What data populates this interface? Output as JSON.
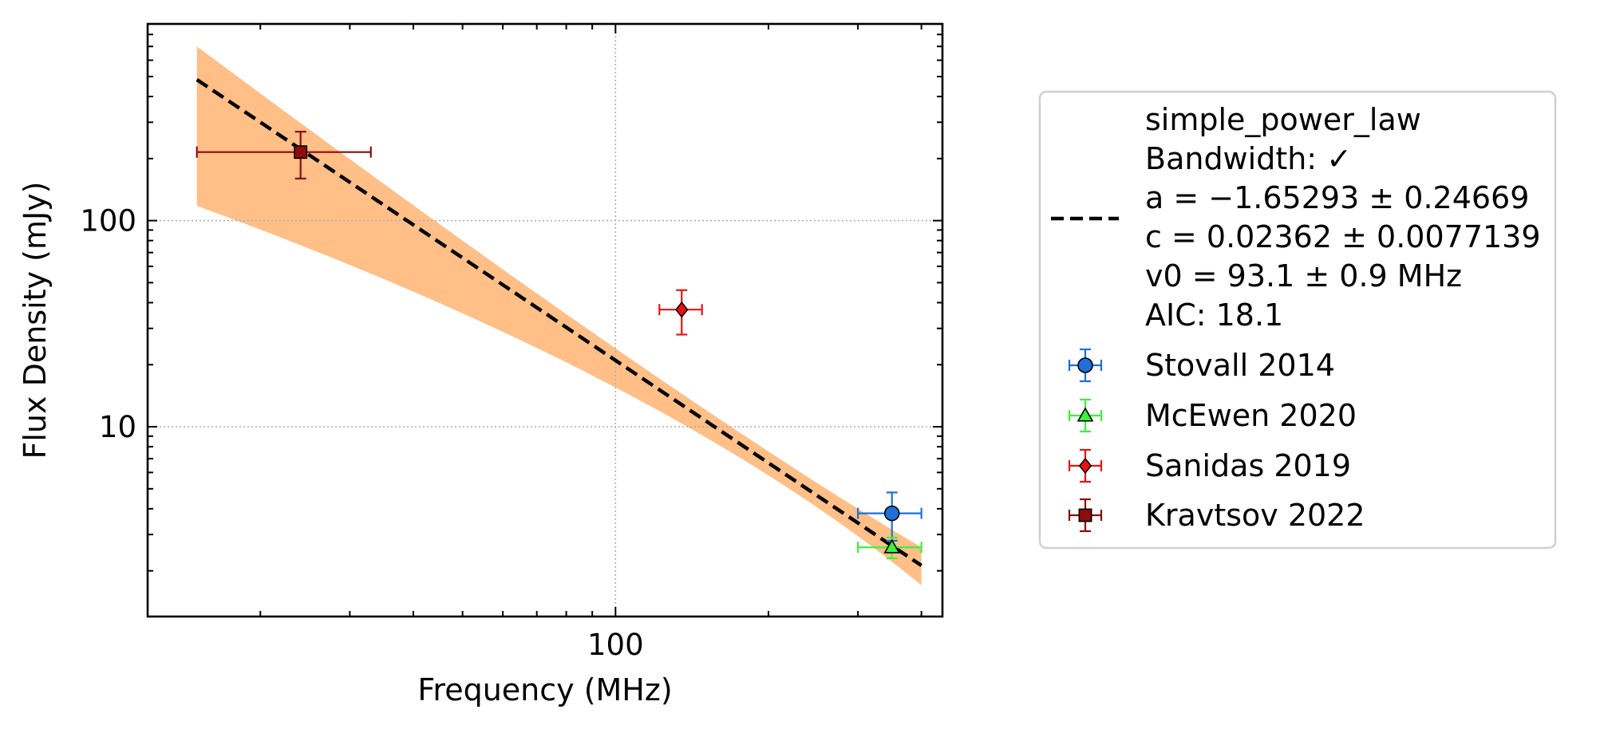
{
  "chart_data": {
    "type": "scatter",
    "xlabel": "Frequency (MHz)",
    "ylabel": "Flux Density (mJy)",
    "xscale": "log",
    "yscale": "log",
    "xlim": [
      12,
      440
    ],
    "ylim": [
      1.2,
      900
    ],
    "xticks": [
      {
        "value": 100,
        "label": "100"
      }
    ],
    "yticks": [
      {
        "value": 10,
        "label": "10"
      },
      {
        "value": 100,
        "label": "100"
      }
    ],
    "grid": true,
    "legend_position": "outside-right",
    "fit": {
      "model_name": "simple_power_law",
      "bandwidth_label": "Bandwidth: ✓",
      "param_a_label": "a = −1.65293 ± 0.24669",
      "param_c_label": "c = 0.02362 ± 0.0077139",
      "param_v0_label": "v0 = 93.1 ± 0.9 MHz",
      "aic_label": "AIC: 18.1",
      "a": -1.65293,
      "c": 0.02362,
      "v0": 93.1,
      "x_range": [
        15,
        400
      ],
      "uncertainty_band": {
        "x": [
          15,
          400
        ],
        "lower": [
          118,
          1.7
        ],
        "upper": [
          700,
          2.6
        ],
        "lower_mid": {
          "x": 100,
          "y": 15.5
        },
        "upper_mid": {
          "x": 100,
          "y": 24
        }
      },
      "line_color": "#000000",
      "band_color": "#ffbf87"
    },
    "series": [
      {
        "name": "Stovall 2014",
        "marker": "circle",
        "color": "#1f6fd6",
        "points": [
          {
            "x": 350,
            "y": 3.8,
            "x_err": [
              50,
              50
            ],
            "y_err": [
              1.0,
              1.0
            ]
          }
        ]
      },
      {
        "name": "McEwen 2020",
        "marker": "triangle",
        "color": "#3cf23c",
        "points": [
          {
            "x": 350,
            "y": 2.6,
            "x_err": [
              50,
              50
            ],
            "y_err": [
              0.3,
              0.3
            ]
          }
        ]
      },
      {
        "name": "Sanidas 2019",
        "marker": "diamond",
        "color": "#ee1111",
        "points": [
          {
            "x": 135,
            "y": 37,
            "x_err": [
              13,
              13
            ],
            "y_err": [
              9,
              9
            ]
          }
        ]
      },
      {
        "name": "Kravtsov 2022",
        "marker": "square",
        "color": "#8b0d0d",
        "points": [
          {
            "x": 24,
            "y": 215,
            "x_err": [
              9,
              9
            ],
            "y_err": [
              55,
              55
            ]
          }
        ]
      }
    ]
  }
}
